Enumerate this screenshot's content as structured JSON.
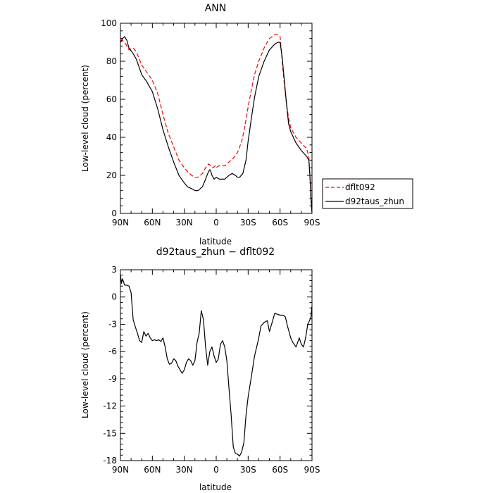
{
  "chart_data": [
    {
      "type": "line",
      "title": "ANN",
      "xlabel": "latitude",
      "ylabel": "Low-level cloud (percent)",
      "x_ticks": [
        "90N",
        "60N",
        "30N",
        "0",
        "30S",
        "60S",
        "90S"
      ],
      "x_tick_values": [
        90,
        60,
        30,
        0,
        -30,
        -60,
        -90
      ],
      "y_ticks": [
        "0",
        "20",
        "40",
        "60",
        "80",
        "100"
      ],
      "y_tick_values": [
        0,
        20,
        40,
        60,
        80,
        100
      ],
      "xlim": [
        90,
        -90
      ],
      "ylim": [
        0,
        100
      ],
      "legend": "outside-right",
      "series": [
        {
          "name": "dflt092",
          "color": "#ff0000",
          "dash": true,
          "x": [
            90,
            88,
            85,
            82,
            78,
            75,
            70,
            65,
            60,
            55,
            50,
            45,
            40,
            35,
            30,
            27,
            23,
            20,
            17,
            13,
            10,
            7,
            5,
            3,
            1,
            0,
            -2,
            -5,
            -8,
            -12,
            -16,
            -20,
            -24,
            -27,
            -30,
            -33,
            -36,
            -40,
            -45,
            -50,
            -55,
            -58,
            -60,
            -62,
            -64,
            -66,
            -68,
            -70,
            -75,
            -80,
            -85,
            -87,
            -88,
            -89,
            -90
          ],
          "y": [
            90,
            91,
            89,
            86,
            87,
            85,
            78,
            74,
            70,
            63,
            52,
            42,
            35,
            28,
            24,
            22,
            20,
            19,
            19,
            21,
            24,
            26,
            25,
            24,
            25,
            24,
            25,
            25,
            25,
            27,
            29,
            32,
            38,
            46,
            56,
            65,
            73,
            80,
            87,
            92,
            94,
            94,
            93,
            80,
            68,
            58,
            50,
            45,
            40,
            37,
            34,
            30,
            20,
            8,
            0
          ]
        },
        {
          "name": "d92taus_zhun",
          "color": "#000000",
          "dash": false,
          "x": [
            90,
            88,
            86,
            84,
            82,
            78,
            75,
            70,
            65,
            60,
            55,
            50,
            45,
            40,
            35,
            30,
            27,
            23,
            20,
            17,
            13,
            10,
            8,
            6,
            5,
            4,
            2,
            0,
            -3,
            -6,
            -8,
            -10,
            -12,
            -15,
            -18,
            -20,
            -22,
            -25,
            -28,
            -30,
            -33,
            -36,
            -40,
            -45,
            -50,
            -55,
            -58,
            -60,
            -62,
            -64,
            -66,
            -68,
            -70,
            -75,
            -80,
            -85,
            -87,
            -88,
            -89,
            -90
          ],
          "y": [
            90,
            92,
            93,
            91,
            87,
            84,
            81,
            73,
            69,
            64,
            55,
            44,
            35,
            27,
            20,
            16,
            14,
            13,
            12,
            12,
            14,
            18,
            21,
            23,
            22,
            20,
            18,
            19,
            18,
            18,
            18,
            19,
            20,
            21,
            20,
            19,
            19,
            21,
            28,
            38,
            50,
            61,
            72,
            80,
            86,
            89,
            90,
            90,
            82,
            70,
            58,
            47,
            43,
            37,
            33,
            30,
            28,
            20,
            8,
            0
          ]
        }
      ]
    },
    {
      "type": "line",
      "title": "d92taus_zhun − dflt092",
      "xlabel": "latitude",
      "ylabel": "Low-level cloud (percent)",
      "x_ticks": [
        "90N",
        "60N",
        "30N",
        "0",
        "30S",
        "60S",
        "90S"
      ],
      "x_tick_values": [
        90,
        60,
        30,
        0,
        -30,
        -60,
        -90
      ],
      "y_ticks": [
        "3",
        "0",
        "-3",
        "-6",
        "-9",
        "-12",
        "-15",
        "-18"
      ],
      "y_tick_values": [
        3,
        0,
        -3,
        -6,
        -9,
        -12,
        -15,
        -18
      ],
      "xlim": [
        90,
        -90
      ],
      "ylim": [
        -18,
        3
      ],
      "series": [
        {
          "name": "",
          "color": "#000000",
          "dash": false,
          "x": [
            90,
            89,
            88,
            86,
            84,
            82,
            80,
            78,
            76,
            74,
            72,
            70,
            68,
            66,
            64,
            62,
            60,
            58,
            56,
            54,
            52,
            50,
            48,
            46,
            44,
            42,
            40,
            38,
            36,
            34,
            32,
            30,
            28,
            26,
            24,
            22,
            20,
            18,
            16,
            14,
            12,
            10,
            8,
            6,
            4,
            2,
            0,
            -2,
            -4,
            -6,
            -8,
            -10,
            -12,
            -14,
            -16,
            -18,
            -20,
            -22,
            -24,
            -26,
            -28,
            -30,
            -32,
            -34,
            -36,
            -38,
            -40,
            -42,
            -45,
            -48,
            -50,
            -55,
            -60,
            -63,
            -65,
            -67,
            -70,
            -72,
            -75,
            -78,
            -80,
            -82,
            -84,
            -86,
            -88,
            -89,
            -90
          ],
          "y": [
            2.5,
            1.5,
            2.0,
            1.3,
            1.3,
            1.2,
            0.5,
            -2.5,
            -3.3,
            -4.0,
            -4.8,
            -5.0,
            -3.8,
            -4.3,
            -4.0,
            -4.5,
            -4.8,
            -4.7,
            -4.8,
            -4.7,
            -4.9,
            -4.5,
            -5.5,
            -6.8,
            -7.4,
            -7.3,
            -6.8,
            -7.0,
            -7.6,
            -8.0,
            -8.4,
            -8.0,
            -7.2,
            -6.8,
            -7.0,
            -7.5,
            -7.0,
            -5.0,
            -4.0,
            -1.5,
            -2.5,
            -5.5,
            -7.5,
            -6.0,
            -5.5,
            -6.5,
            -7.2,
            -6.8,
            -5.2,
            -4.8,
            -5.5,
            -7.0,
            -10.0,
            -13.0,
            -16.5,
            -17.2,
            -17.3,
            -17.5,
            -17.0,
            -16.0,
            -13.0,
            -11.0,
            -9.5,
            -8.0,
            -6.5,
            -5.5,
            -4.5,
            -3.2,
            -2.8,
            -2.6,
            -3.8,
            -1.8,
            -2.0,
            -2.0,
            -2.2,
            -3.2,
            -4.5,
            -5.0,
            -5.5,
            -4.5,
            -5.2,
            -5.5,
            -4.5,
            -3.0,
            -2.5,
            -2.2,
            -1.0
          ]
        }
      ]
    }
  ]
}
